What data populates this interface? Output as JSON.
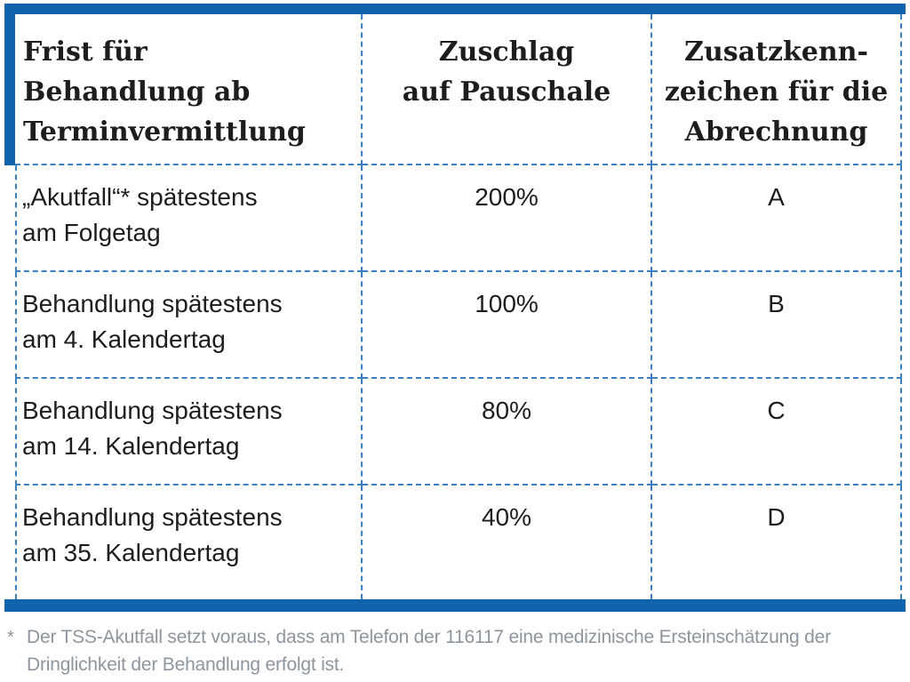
{
  "accent": {
    "bar_color": "#1063ac",
    "dashed_line_color": "#3d7fbf"
  },
  "table": {
    "headers": {
      "col1": "Frist für\nBehandlung ab\nTerminvermittlung",
      "col2": "Zuschlag\nauf Pauschale",
      "col3": "Zusatzkenn-\nzeichen für die\nAbrechnung"
    },
    "rows": [
      {
        "frist": "„Akutfall“* spätestens\nam Folgetag",
        "zuschlag": "200%",
        "kennzeichen": "A"
      },
      {
        "frist": "Behandlung spätestens\nam 4. Kalendertag",
        "zuschlag": "100%",
        "kennzeichen": "B"
      },
      {
        "frist": "Behandlung spätestens\nam 14. Kalendertag",
        "zuschlag": "80%",
        "kennzeichen": "C"
      },
      {
        "frist": "Behandlung spätestens\nam 35. Kalendertag",
        "zuschlag": "40%",
        "kennzeichen": "D"
      }
    ]
  },
  "footnote": {
    "marker": "*",
    "text": "Der TSS-Akutfall setzt voraus, dass am Telefon der 116117 eine medizinische Ersteinschätzung der Dringlichkeit der Behandlung erfolgt ist."
  }
}
